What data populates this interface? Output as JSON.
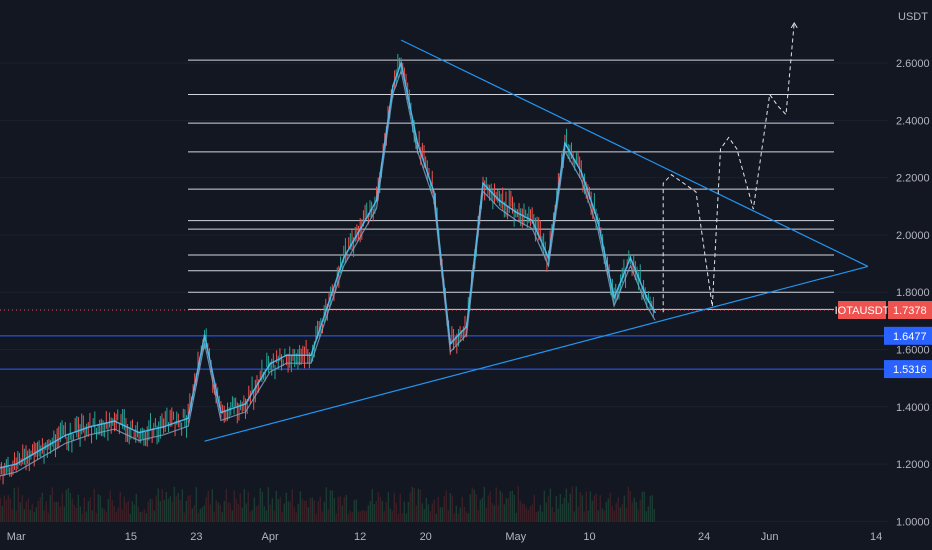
{
  "chart_data": {
    "type": "candlestick",
    "symbol": "IOTAUSDT",
    "currency_label": "USDT",
    "ylim": [
      0.9,
      2.82
    ],
    "x_ticks": [
      "Mar",
      "15",
      "23",
      "Apr",
      "12",
      "20",
      "May",
      "10",
      "24",
      "Jun",
      "14"
    ],
    "y_ticks": [
      "1.0000",
      "1.2000",
      "1.4000",
      "1.6000",
      "1.8000",
      "2.0000",
      "2.2000",
      "2.4000",
      "2.6000"
    ],
    "y_tick_values": [
      1.0,
      1.2,
      1.4,
      1.6,
      1.8,
      2.0,
      2.2,
      2.4,
      2.6
    ],
    "current_price": {
      "label": "IOTAUSDT",
      "value": "1.7378",
      "y": 1.7378
    },
    "horizontal_levels": [
      {
        "label": "1.6477",
        "y": 1.6477
      },
      {
        "label": "1.5316",
        "y": 1.5316
      }
    ],
    "resistance_levels": [
      2.61,
      2.49,
      2.39,
      2.29,
      2.16,
      2.05,
      2.02,
      1.93,
      1.875,
      1.8,
      1.74
    ],
    "trendlines": [
      {
        "name": "descending-resistance",
        "from": {
          "date": "2021-04-17",
          "y": 2.68
        },
        "to": {
          "date": "2021-06-13",
          "y": 1.89
        }
      },
      {
        "name": "ascending-support",
        "from": {
          "date": "2021-03-24",
          "y": 1.28
        },
        "to": {
          "date": "2021-06-13",
          "y": 1.89
        }
      }
    ],
    "projected_path": [
      {
        "date": "2021-05-19",
        "y": 1.73
      },
      {
        "date": "2021-05-19",
        "y": 2.18
      },
      {
        "date": "2021-05-20",
        "y": 2.21
      },
      {
        "date": "2021-05-23",
        "y": 2.15
      },
      {
        "date": "2021-05-25",
        "y": 1.75
      },
      {
        "date": "2021-05-26",
        "y": 2.3
      },
      {
        "date": "2021-05-27",
        "y": 2.34
      },
      {
        "date": "2021-05-28",
        "y": 2.3
      },
      {
        "date": "2021-05-30",
        "y": 2.09
      },
      {
        "date": "2021-06-01",
        "y": 2.49
      },
      {
        "date": "2021-06-02",
        "y": 2.45
      },
      {
        "date": "2021-06-03",
        "y": 2.42
      },
      {
        "date": "2021-06-04",
        "y": 2.74
      }
    ],
    "series": [
      {
        "date": "2021-02-26",
        "y": 1.18
      },
      {
        "date": "2021-03-01",
        "y": 1.2
      },
      {
        "date": "2021-03-04",
        "y": 1.25
      },
      {
        "date": "2021-03-07",
        "y": 1.3
      },
      {
        "date": "2021-03-10",
        "y": 1.33
      },
      {
        "date": "2021-03-13",
        "y": 1.35
      },
      {
        "date": "2021-03-16",
        "y": 1.31
      },
      {
        "date": "2021-03-19",
        "y": 1.33
      },
      {
        "date": "2021-03-22",
        "y": 1.36
      },
      {
        "date": "2021-03-24",
        "y": 1.65
      },
      {
        "date": "2021-03-26",
        "y": 1.38
      },
      {
        "date": "2021-03-29",
        "y": 1.41
      },
      {
        "date": "2021-04-01",
        "y": 1.55
      },
      {
        "date": "2021-04-03",
        "y": 1.58
      },
      {
        "date": "2021-04-06",
        "y": 1.58
      },
      {
        "date": "2021-04-08",
        "y": 1.75
      },
      {
        "date": "2021-04-10",
        "y": 1.92
      },
      {
        "date": "2021-04-12",
        "y": 2.02
      },
      {
        "date": "2021-04-14",
        "y": 2.12
      },
      {
        "date": "2021-04-16",
        "y": 2.52
      },
      {
        "date": "2021-04-17",
        "y": 2.6
      },
      {
        "date": "2021-04-19",
        "y": 2.32
      },
      {
        "date": "2021-04-21",
        "y": 2.15
      },
      {
        "date": "2021-04-23",
        "y": 1.62
      },
      {
        "date": "2021-04-25",
        "y": 1.68
      },
      {
        "date": "2021-04-27",
        "y": 2.18
      },
      {
        "date": "2021-04-29",
        "y": 2.12
      },
      {
        "date": "2021-05-01",
        "y": 2.08
      },
      {
        "date": "2021-05-03",
        "y": 2.05
      },
      {
        "date": "2021-05-05",
        "y": 1.92
      },
      {
        "date": "2021-05-07",
        "y": 2.32
      },
      {
        "date": "2021-05-09",
        "y": 2.22
      },
      {
        "date": "2021-05-11",
        "y": 2.05
      },
      {
        "date": "2021-05-13",
        "y": 1.78
      },
      {
        "date": "2021-05-15",
        "y": 1.92
      },
      {
        "date": "2021-05-17",
        "y": 1.78
      },
      {
        "date": "2021-05-18",
        "y": 1.73
      }
    ]
  }
}
